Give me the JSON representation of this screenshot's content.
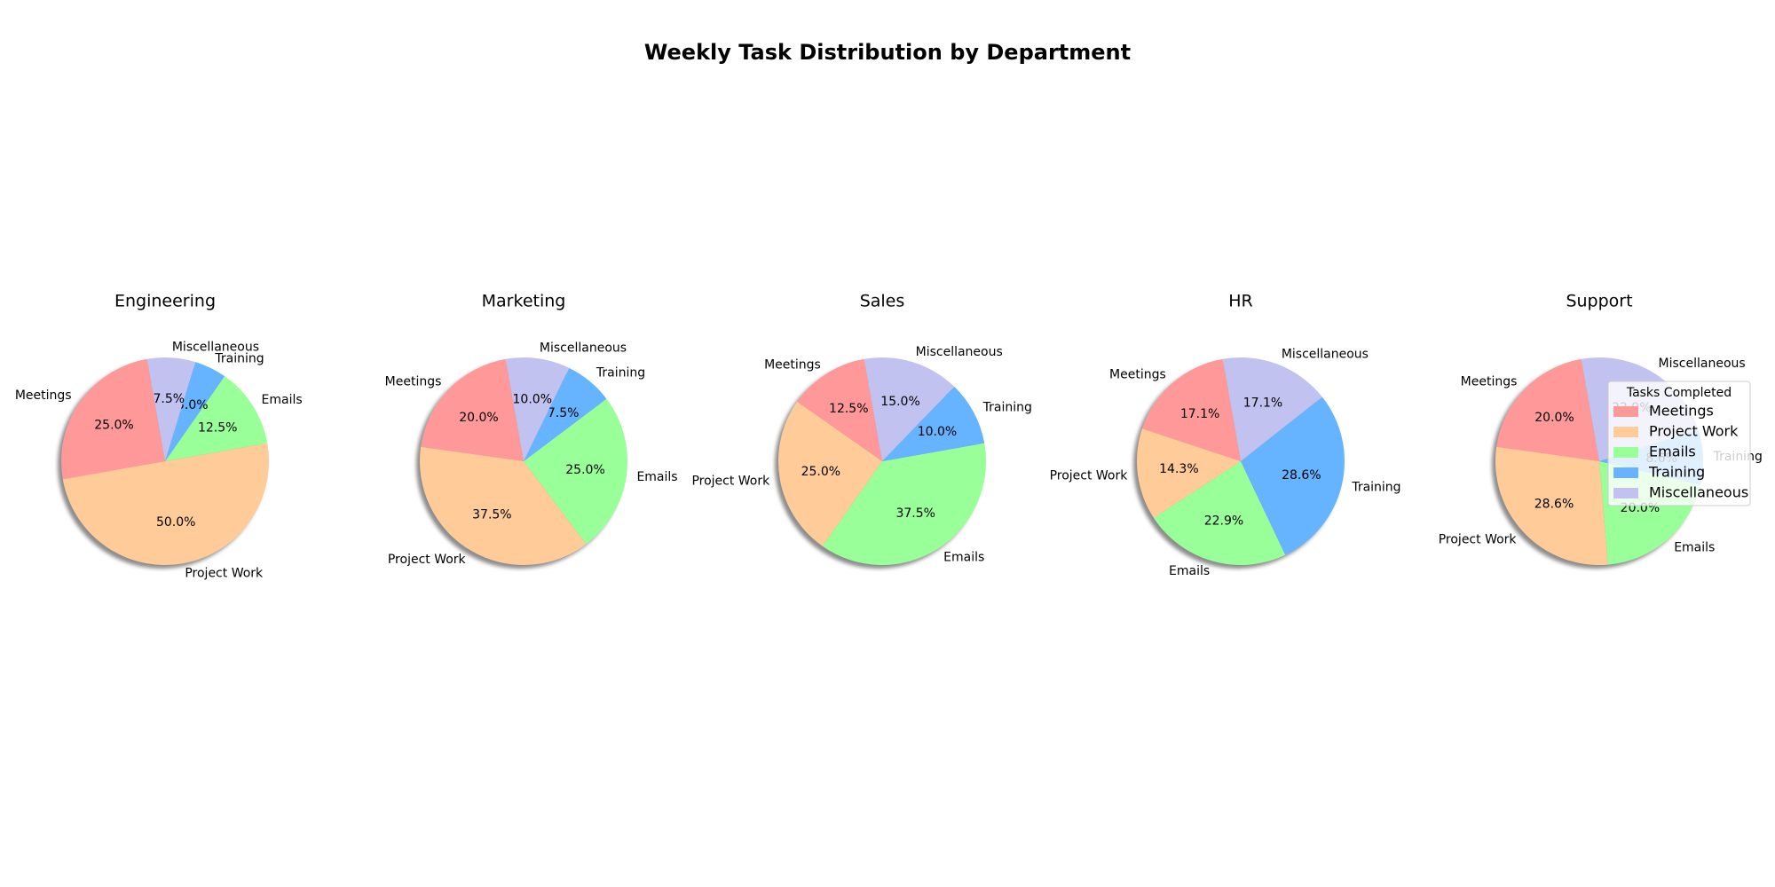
{
  "chart_data": {
    "type": "pie",
    "title": "Weekly Task Distribution by Department",
    "categories": [
      "Meetings",
      "Project Work",
      "Emails",
      "Training",
      "Miscellaneous"
    ],
    "colors": [
      "#ff9999",
      "#ffcc99",
      "#99ff99",
      "#66b3ff",
      "#c2c2f0"
    ],
    "start_angle_deg": 100,
    "shadow": true,
    "pies": [
      {
        "name": "Engineering",
        "values": [
          10,
          20,
          5,
          2,
          3
        ],
        "percent_labels": [
          "25.0%",
          "50.0%",
          "12.5%",
          "5.0%",
          "7.5%"
        ]
      },
      {
        "name": "Marketing",
        "values": [
          8,
          15,
          10,
          3,
          4
        ],
        "percent_labels": [
          "20.0%",
          "37.5%",
          "25.0%",
          "7.5%",
          "10.0%"
        ]
      },
      {
        "name": "Sales",
        "values": [
          5,
          10,
          15,
          4,
          6
        ],
        "percent_labels": [
          "12.5%",
          "25.0%",
          "37.5%",
          "10.0%",
          "15.0%"
        ]
      },
      {
        "name": "HR",
        "values": [
          6,
          5,
          8,
          10,
          6
        ],
        "percent_labels": [
          "17.1%",
          "14.3%",
          "22.9%",
          "28.6%",
          "17.1%"
        ]
      },
      {
        "name": "Support",
        "values": [
          7,
          10,
          7,
          3,
          8
        ],
        "percent_labels": [
          "20.0%",
          "28.6%",
          "20.0%",
          "8.6%",
          "22.9%"
        ]
      }
    ],
    "legend": {
      "title": "Tasks Completed",
      "entries": [
        "Meetings",
        "Project Work",
        "Emails",
        "Training",
        "Miscellaneous"
      ],
      "placement": "right"
    }
  }
}
